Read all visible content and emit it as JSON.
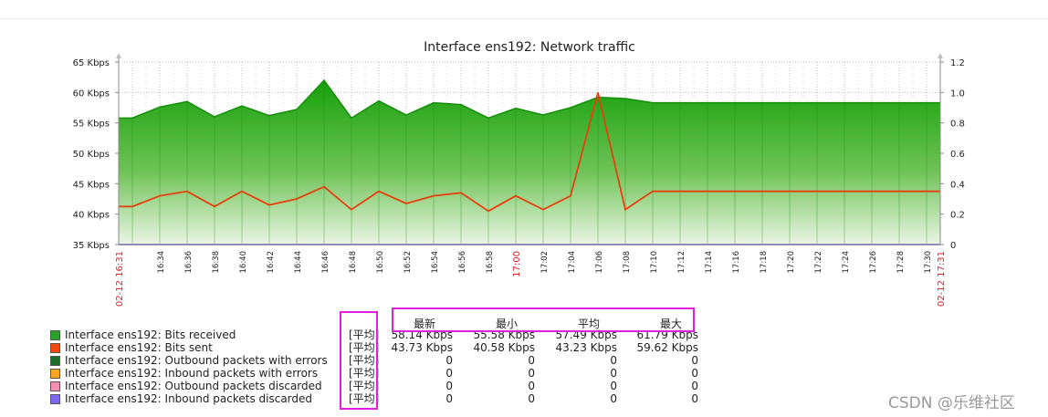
{
  "chart_data": {
    "type": "area",
    "title": "Interface ens192: Network traffic",
    "x_ticks": [
      "16:34",
      "16:36",
      "16:38",
      "16:40",
      "16:42",
      "16:44",
      "16:46",
      "16:48",
      "16:50",
      "16:52",
      "16:54",
      "16:56",
      "16:58",
      "17:00",
      "17:02",
      "17:04",
      "17:06",
      "17:08",
      "17:10",
      "17:12",
      "17:14",
      "17:16",
      "17:18",
      "17:20",
      "17:22",
      "17:24",
      "17:26",
      "17:28",
      "17:30"
    ],
    "x_start_label": "02-12 16:31",
    "x_end_label": "02-12 17:31",
    "x_highlight_label": "17:00",
    "x_range_minutes": [
      0,
      60
    ],
    "y_left": {
      "ticks": [
        "35 Kbps",
        "40 Kbps",
        "45 Kbps",
        "50 Kbps",
        "55 Kbps",
        "60 Kbps",
        "65 Kbps"
      ],
      "range": [
        35,
        65
      ],
      "unit": "Kbps"
    },
    "y_right": {
      "ticks": [
        "0",
        "0.2",
        "0.4",
        "0.6",
        "0.8",
        "1.0",
        "1.2"
      ],
      "range": [
        0,
        1.2
      ]
    },
    "grid": true,
    "series": [
      {
        "name": "Interface ens192: Bits received",
        "axis": "left",
        "style": "area",
        "color": "#1a9c0a",
        "x": [
          0,
          1,
          3,
          5,
          7,
          9,
          11,
          13,
          15,
          17,
          19,
          21,
          23,
          25,
          27,
          29,
          31,
          33,
          35,
          37,
          39,
          41,
          43,
          45,
          47,
          49,
          51,
          53,
          55,
          57,
          59,
          60
        ],
        "values": [
          55.8,
          55.8,
          57.6,
          58.5,
          56.0,
          57.8,
          56.2,
          57.2,
          62.0,
          55.8,
          58.6,
          56.3,
          58.3,
          58.0,
          55.8,
          57.4,
          56.3,
          57.5,
          59.2,
          59.0,
          58.3,
          58.3,
          58.3,
          58.3,
          58.3,
          58.3,
          58.3,
          58.3,
          58.3,
          58.3,
          58.3,
          58.3
        ]
      },
      {
        "name": "Interface ens192: Bits sent",
        "axis": "right",
        "style": "line",
        "color": "#e8400c",
        "x": [
          0,
          1,
          3,
          5,
          7,
          9,
          11,
          13,
          15,
          17,
          19,
          21,
          23,
          25,
          27,
          29,
          31,
          33,
          35,
          37,
          39,
          41,
          43,
          45,
          47,
          49,
          51,
          53,
          55,
          57,
          59,
          60
        ],
        "values": [
          0.25,
          0.25,
          0.32,
          0.35,
          0.25,
          0.35,
          0.26,
          0.3,
          0.38,
          0.23,
          0.35,
          0.27,
          0.32,
          0.34,
          0.22,
          0.32,
          0.23,
          0.32,
          1.0,
          0.23,
          0.35,
          0.35,
          0.35,
          0.35,
          0.35,
          0.35,
          0.35,
          0.35,
          0.35,
          0.35,
          0.35,
          0.35
        ]
      },
      {
        "name": "Interface ens192: Inbound packets discarded",
        "axis": "right",
        "style": "line",
        "color": "#7b68ee",
        "x": [
          0,
          60
        ],
        "values": [
          0,
          0
        ]
      }
    ]
  },
  "legend": {
    "headers": [
      "最新",
      "最小",
      "平均",
      "最大"
    ],
    "rows": [
      {
        "name": "Interface ens192: Bits received",
        "color": "#2ca02c",
        "func": "[平均]",
        "values": [
          "58.14 Kbps",
          "55.58 Kbps",
          "57.49 Kbps",
          "61.79 Kbps"
        ]
      },
      {
        "name": "Interface ens192: Bits sent",
        "color": "#f04a10",
        "func": "[平均]",
        "values": [
          "43.73 Kbps",
          "40.58 Kbps",
          "43.23 Kbps",
          "59.62 Kbps"
        ]
      },
      {
        "name": "Interface ens192: Outbound packets with errors",
        "color": "#1e6b2a",
        "func": "[平均]",
        "values": [
          "0",
          "0",
          "0",
          "0"
        ]
      },
      {
        "name": "Interface ens192: Inbound packets with errors",
        "color": "#f5a623",
        "func": "[平均]",
        "values": [
          "0",
          "0",
          "0",
          "0"
        ]
      },
      {
        "name": "Interface ens192: Outbound packets discarded",
        "color": "#f78fb3",
        "func": "[平均]",
        "values": [
          "0",
          "0",
          "0",
          "0"
        ]
      },
      {
        "name": "Interface ens192: Inbound packets discarded",
        "color": "#7b68ee",
        "func": "[平均]",
        "values": [
          "0",
          "0",
          "0",
          "0"
        ]
      }
    ]
  },
  "watermark": "CSDN @乐维社区"
}
